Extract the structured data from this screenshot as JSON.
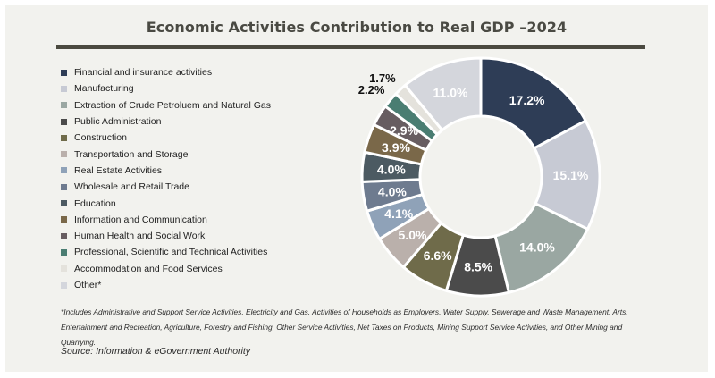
{
  "title": "Economic Activities Contribution to Real GDP –2024",
  "chart_data": {
    "type": "pie",
    "variant": "donut",
    "title": "Economic Activities Contribution to Real GDP –2024",
    "unit": "%",
    "legend_position": "left",
    "categories": [
      "Financial and insurance activities",
      "Manufacturing",
      "Extraction of Crude Petroluem and Natural Gas",
      "Public Administration",
      "Construction",
      "Transportation and Storage",
      "Real Estate Activities",
      "Wholesale and Retail Trade",
      "Education",
      "Information and Communication",
      "Human Health and Social Work",
      "Professional, Scientific and Technical Activities",
      "Accommodation and Food Services",
      "Other*"
    ],
    "values": [
      17.2,
      15.1,
      14.0,
      8.5,
      6.6,
      5.0,
      4.1,
      4.0,
      4.0,
      3.9,
      2.9,
      2.2,
      1.7,
      11.0
    ],
    "labels": [
      "17.2%",
      "15.1%",
      "14.0%",
      "8.5%",
      "6.6%",
      "5.0%",
      "4.1%",
      "4.0%",
      "4.0%",
      "3.9%",
      "2.9%",
      "2.2%",
      "1.7%",
      "11.0%"
    ],
    "colors": [
      "#2e3d56",
      "#c7cad4",
      "#9aa7a2",
      "#4b4b4b",
      "#6f6b4a",
      "#bab0ab",
      "#8fa2b8",
      "#6e7b8f",
      "#4c5a62",
      "#7a6849",
      "#675d61",
      "#4a7d72",
      "#e4e2dc",
      "#d4d6dc"
    ]
  },
  "footnote": "*Includes Administrative and Support Service Activities, Electricity and Gas, Activities of Households as Employers, Water Supply, Sewerage and Waste Management, Arts, Entertainment and Recreation, Agriculture, Forestry and Fishing, Other Service Activities, Net Taxes on Products, Mining Support Service Activities, and Other Mining and Quarrying.",
  "source": "Source: Information & eGovernment Authority"
}
